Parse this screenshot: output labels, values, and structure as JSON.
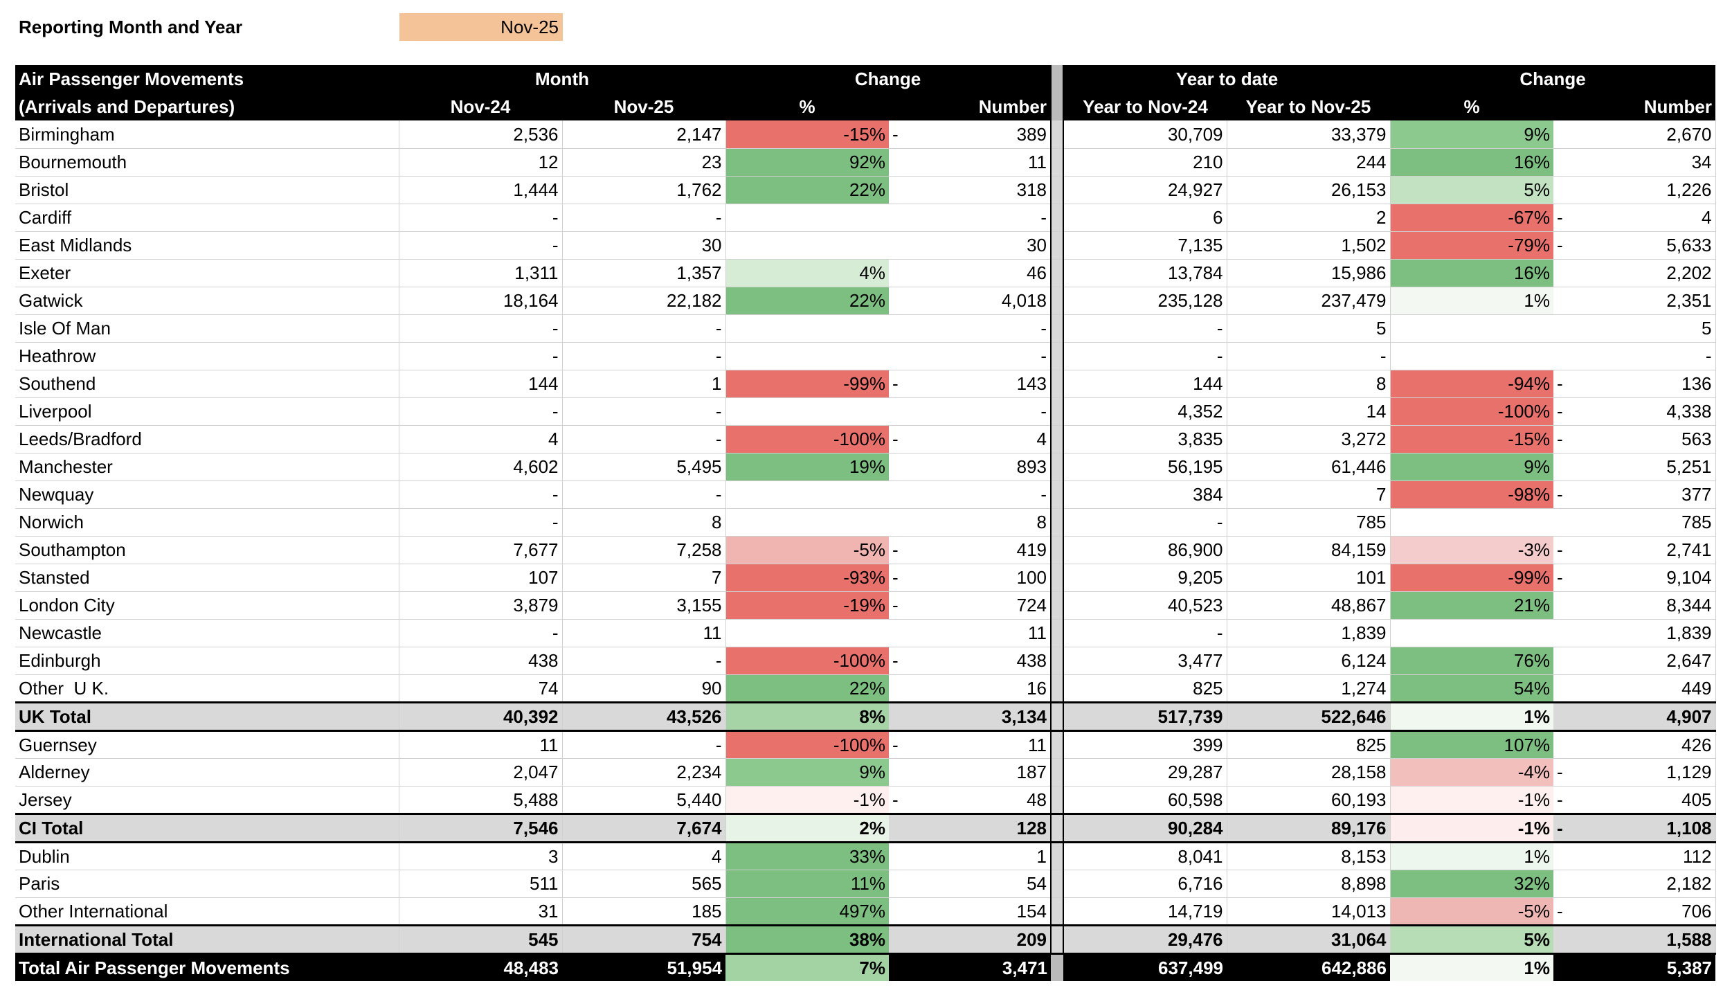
{
  "header": {
    "label": "Reporting Month and Year",
    "value": "Nov-25"
  },
  "table": {
    "title": [
      "Air Passenger Movements",
      "(Arrivals and Departures)"
    ],
    "groups": [
      "Month",
      "Change",
      "Year to date",
      "Change"
    ],
    "columns": [
      "Nov-24",
      "Nov-25",
      "%",
      "Number",
      "Year to Nov-24",
      "Year to Nov-25",
      "%",
      "Number"
    ],
    "rows": [
      {
        "name": "Birmingham",
        "cells": [
          "2,536",
          "2,147",
          "-15%",
          [
            "-",
            "389"
          ],
          "30,709",
          "33,379",
          "9%",
          "2,670"
        ],
        "pct_colors": [
          "#e8716b",
          "#8cc98e"
        ]
      },
      {
        "name": "Bournemouth",
        "cells": [
          "12",
          "23",
          "92%",
          "11",
          "210",
          "244",
          "16%",
          "34"
        ],
        "pct_colors": [
          "#7cbf80",
          "#7cbf80"
        ]
      },
      {
        "name": "Bristol",
        "cells": [
          "1,444",
          "1,762",
          "22%",
          "318",
          "24,927",
          "26,153",
          "5%",
          "1,226"
        ],
        "pct_colors": [
          "#7cbf80",
          "#c2e2c2"
        ]
      },
      {
        "name": "Cardiff",
        "cells": [
          "-",
          "-",
          "",
          "-",
          "6",
          "2",
          "-67%",
          [
            "-",
            "4"
          ]
        ],
        "pct_colors": [
          null,
          "#e8716b"
        ]
      },
      {
        "name": "East Midlands",
        "cells": [
          "-",
          "30",
          "",
          "30",
          "7,135",
          "1,502",
          "-79%",
          [
            "-",
            "5,633"
          ]
        ],
        "pct_colors": [
          null,
          "#e8716b"
        ]
      },
      {
        "name": "Exeter",
        "cells": [
          "1,311",
          "1,357",
          "4%",
          "46",
          "13,784",
          "15,986",
          "16%",
          "2,202"
        ],
        "pct_colors": [
          "#d6ecd5",
          "#7cbf80"
        ]
      },
      {
        "name": "Gatwick",
        "cells": [
          "18,164",
          "22,182",
          "22%",
          "4,018",
          "235,128",
          "237,479",
          "1%",
          "2,351"
        ],
        "pct_colors": [
          "#7cbf80",
          "#f3f9f2"
        ]
      },
      {
        "name": "Isle Of Man",
        "cells": [
          "-",
          "-",
          "",
          "-",
          "-",
          "5",
          "",
          "5"
        ],
        "pct_colors": [
          null,
          null
        ]
      },
      {
        "name": "Heathrow",
        "cells": [
          "-",
          "-",
          "",
          "-",
          "-",
          "-",
          "",
          "-"
        ],
        "pct_colors": [
          null,
          null
        ]
      },
      {
        "name": "Southend",
        "cells": [
          "144",
          "1",
          "-99%",
          [
            "-",
            "143"
          ],
          "144",
          "8",
          "-94%",
          [
            "-",
            "136"
          ]
        ],
        "pct_colors": [
          "#e8716b",
          "#e8716b"
        ]
      },
      {
        "name": "Liverpool",
        "cells": [
          "-",
          "-",
          "",
          "-",
          "4,352",
          "14",
          "-100%",
          [
            "-",
            "4,338"
          ]
        ],
        "pct_colors": [
          null,
          "#e8716b"
        ]
      },
      {
        "name": "Leeds/Bradford",
        "cells": [
          "4",
          "-",
          "-100%",
          [
            "-",
            "4"
          ],
          "3,835",
          "3,272",
          "-15%",
          [
            "-",
            "563"
          ]
        ],
        "pct_colors": [
          "#e8716b",
          "#e8716b"
        ]
      },
      {
        "name": "Manchester",
        "cells": [
          "4,602",
          "5,495",
          "19%",
          "893",
          "56,195",
          "61,446",
          "9%",
          "5,251"
        ],
        "pct_colors": [
          "#7cbf80",
          "#7cbf80"
        ]
      },
      {
        "name": "Newquay",
        "cells": [
          "-",
          "-",
          "",
          "-",
          "384",
          "7",
          "-98%",
          [
            "-",
            "377"
          ]
        ],
        "pct_colors": [
          null,
          "#e8716b"
        ]
      },
      {
        "name": "Norwich",
        "cells": [
          "-",
          "8",
          "",
          "8",
          "-",
          "785",
          "",
          "785"
        ],
        "pct_colors": [
          null,
          null
        ]
      },
      {
        "name": "Southampton",
        "cells": [
          "7,677",
          "7,258",
          "-5%",
          [
            "-",
            "419"
          ],
          "86,900",
          "84,159",
          "-3%",
          [
            "-",
            "2,741"
          ]
        ],
        "pct_colors": [
          "#f0b4b1",
          "#f4cccb"
        ]
      },
      {
        "name": "Stansted",
        "cells": [
          "107",
          "7",
          "-93%",
          [
            "-",
            "100"
          ],
          "9,205",
          "101",
          "-99%",
          [
            "-",
            "9,104"
          ]
        ],
        "pct_colors": [
          "#e8716b",
          "#e8716b"
        ]
      },
      {
        "name": "London City",
        "cells": [
          "3,879",
          "3,155",
          "-19%",
          [
            "-",
            "724"
          ],
          "40,523",
          "48,867",
          "21%",
          "8,344"
        ],
        "pct_colors": [
          "#e8716b",
          "#7cbf80"
        ]
      },
      {
        "name": "Newcastle",
        "cells": [
          "-",
          "11",
          "",
          "11",
          "-",
          "1,839",
          "",
          "1,839"
        ],
        "pct_colors": [
          null,
          null
        ]
      },
      {
        "name": "Edinburgh",
        "cells": [
          "438",
          "-",
          "-100%",
          [
            "-",
            "438"
          ],
          "3,477",
          "6,124",
          "76%",
          "2,647"
        ],
        "pct_colors": [
          "#e8716b",
          "#7cbf80"
        ]
      },
      {
        "name": "Other  U K.",
        "cells": [
          "74",
          "90",
          "22%",
          "16",
          "825",
          "1,274",
          "54%",
          "449"
        ],
        "pct_colors": [
          "#7cbf80",
          "#7cbf80"
        ]
      },
      {
        "name": "UK Total",
        "style": "total",
        "cells": [
          "40,392",
          "43,526",
          "8%",
          "3,134",
          "517,739",
          "522,646",
          "1%",
          "4,907"
        ],
        "pct_colors": [
          "#a6d4a6",
          "#f1f8f0"
        ]
      },
      {
        "name": "Guernsey",
        "cells": [
          "11",
          "-",
          "-100%",
          [
            "-",
            "11"
          ],
          "399",
          "825",
          "107%",
          "426"
        ],
        "pct_colors": [
          "#e8716b",
          "#7cbf80"
        ]
      },
      {
        "name": "Alderney",
        "cells": [
          "2,047",
          "2,234",
          "9%",
          "187",
          "29,287",
          "28,158",
          "-4%",
          [
            "-",
            "1,129"
          ]
        ],
        "pct_colors": [
          "#8cc98e",
          "#f2bfbd"
        ]
      },
      {
        "name": "Jersey",
        "cells": [
          "5,488",
          "5,440",
          "-1%",
          [
            "-",
            "48"
          ],
          "60,598",
          "60,193",
          "-1%",
          [
            "-",
            "405"
          ]
        ],
        "pct_colors": [
          "#fdf0ef",
          "#fdf0ef"
        ]
      },
      {
        "name": "CI Total",
        "style": "total",
        "cells": [
          "7,546",
          "7,674",
          "2%",
          "128",
          "90,284",
          "89,176",
          "-1%",
          [
            "-",
            "1,108"
          ]
        ],
        "pct_colors": [
          "#e7f3e6",
          "#fdeeed"
        ]
      },
      {
        "name": "Dublin",
        "cells": [
          "3",
          "4",
          "33%",
          "1",
          "8,041",
          "8,153",
          "1%",
          "112"
        ],
        "pct_colors": [
          "#7cbf80",
          "#eef7ee"
        ]
      },
      {
        "name": "Paris",
        "cells": [
          "511",
          "565",
          "11%",
          "54",
          "6,716",
          "8,898",
          "32%",
          "2,182"
        ],
        "pct_colors": [
          "#7cbf80",
          "#7cbf80"
        ]
      },
      {
        "name": "Other International",
        "cells": [
          "31",
          "185",
          "497%",
          "154",
          "14,719",
          "14,013",
          "-5%",
          [
            "-",
            "706"
          ]
        ],
        "pct_colors": [
          "#7cbf80",
          "#efb7b4"
        ]
      },
      {
        "name": "International Total",
        "style": "total",
        "cells": [
          "545",
          "754",
          "38%",
          "209",
          "29,476",
          "31,064",
          "5%",
          "1,588"
        ],
        "pct_colors": [
          "#7cbf80",
          "#b7ddb6"
        ]
      },
      {
        "name": "Total Air Passenger Movements",
        "style": "grand",
        "cells": [
          "48,483",
          "51,954",
          "7%",
          "3,471",
          "637,499",
          "642,886",
          "1%",
          "5,387"
        ],
        "pct_colors": [
          "#a3d3a3",
          "#f3f9f2"
        ]
      }
    ]
  }
}
